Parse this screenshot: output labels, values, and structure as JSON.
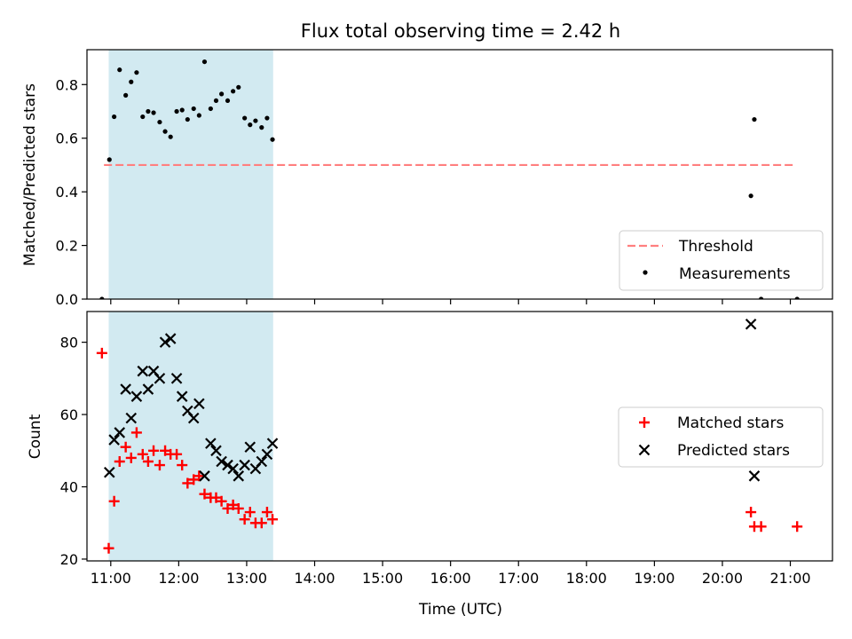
{
  "chart_data": {
    "title": "Flux total observing time = 2.42 h",
    "xlabel": "Time (UTC)",
    "x_ticks": [
      "11:00",
      "12:00",
      "13:00",
      "14:00",
      "15:00",
      "16:00",
      "17:00",
      "18:00",
      "19:00",
      "20:00",
      "21:00"
    ],
    "x_range_hours": [
      10.65,
      21.62
    ],
    "highlight_span_hours": [
      10.97,
      13.39
    ],
    "colors": {
      "highlight": "#add8e6",
      "threshold": "#ff7f7f",
      "matched": "#ff0000",
      "predicted": "#000000",
      "measurements": "#000000"
    },
    "panels": [
      {
        "type": "scatter",
        "ylabel": "Matched/Predicted stars",
        "ylim": [
          0,
          0.93
        ],
        "y_ticks": [
          0.0,
          0.2,
          0.4,
          0.6,
          0.8
        ],
        "y_tick_labels": [
          "0.0",
          "0.2",
          "0.4",
          "0.6",
          "0.8"
        ],
        "legend_position": "bottom-right",
        "threshold": {
          "name": "Threshold",
          "value": 0.5,
          "x_start": 10.9,
          "x_end": 21.05
        },
        "series": [
          {
            "name": "Measurements",
            "x": [
              10.87,
              10.98,
              11.05,
              11.13,
              11.22,
              11.3,
              11.38,
              11.47,
              11.55,
              11.63,
              11.72,
              11.8,
              11.88,
              11.97,
              12.05,
              12.13,
              12.22,
              12.3,
              12.38,
              12.47,
              12.55,
              12.63,
              12.72,
              12.8,
              12.88,
              12.97,
              13.05,
              13.13,
              13.22,
              13.3,
              13.38,
              20.42,
              20.47,
              20.57,
              21.1
            ],
            "y": [
              0.0,
              0.52,
              0.68,
              0.855,
              0.76,
              0.81,
              0.845,
              0.68,
              0.7,
              0.695,
              0.66,
              0.625,
              0.605,
              0.7,
              0.705,
              0.67,
              0.71,
              0.685,
              0.885,
              0.71,
              0.74,
              0.765,
              0.74,
              0.775,
              0.79,
              0.675,
              0.65,
              0.665,
              0.64,
              0.675,
              0.595,
              0.385,
              0.67,
              0.0,
              0.0
            ]
          }
        ]
      },
      {
        "type": "scatter",
        "ylabel": "Count",
        "ylim": [
          19.5,
          88.5
        ],
        "y_ticks": [
          20,
          40,
          60,
          80
        ],
        "y_tick_labels": [
          "20",
          "40",
          "60",
          "80"
        ],
        "legend_position": "center-right",
        "series": [
          {
            "name": "Matched stars",
            "marker": "plus",
            "x": [
              10.87,
              10.97,
              11.05,
              11.13,
              11.22,
              11.3,
              11.38,
              11.47,
              11.55,
              11.63,
              11.72,
              11.8,
              11.88,
              11.97,
              12.05,
              12.13,
              12.22,
              12.3,
              12.38,
              12.47,
              12.55,
              12.63,
              12.72,
              12.8,
              12.88,
              12.97,
              13.05,
              13.13,
              13.22,
              13.3,
              13.38,
              20.42,
              20.47,
              20.57,
              21.1
            ],
            "y": [
              77,
              23,
              36,
              47,
              51,
              48,
              55,
              49,
              47,
              50,
              46,
              50,
              49,
              49,
              46,
              41,
              42,
              43,
              38,
              37,
              37,
              36,
              34,
              35,
              34,
              31,
              33,
              30,
              30,
              33,
              31,
              33,
              29,
              29,
              29
            ]
          },
          {
            "name": "Predicted stars",
            "marker": "x",
            "x": [
              10.98,
              11.05,
              11.13,
              11.22,
              11.3,
              11.38,
              11.47,
              11.55,
              11.63,
              11.72,
              11.8,
              11.88,
              11.97,
              12.05,
              12.13,
              12.22,
              12.3,
              12.38,
              12.47,
              12.55,
              12.63,
              12.72,
              12.8,
              12.88,
              12.97,
              13.05,
              13.13,
              13.22,
              13.3,
              13.38,
              20.42,
              20.47
            ],
            "y": [
              44,
              53,
              55,
              67,
              59,
              65,
              72,
              67,
              72,
              70,
              80,
              81,
              70,
              65,
              61,
              59,
              63,
              43,
              52,
              50,
              47,
              46,
              45,
              43,
              46,
              51,
              45,
              47,
              49,
              52,
              85,
              43
            ]
          }
        ]
      }
    ]
  }
}
